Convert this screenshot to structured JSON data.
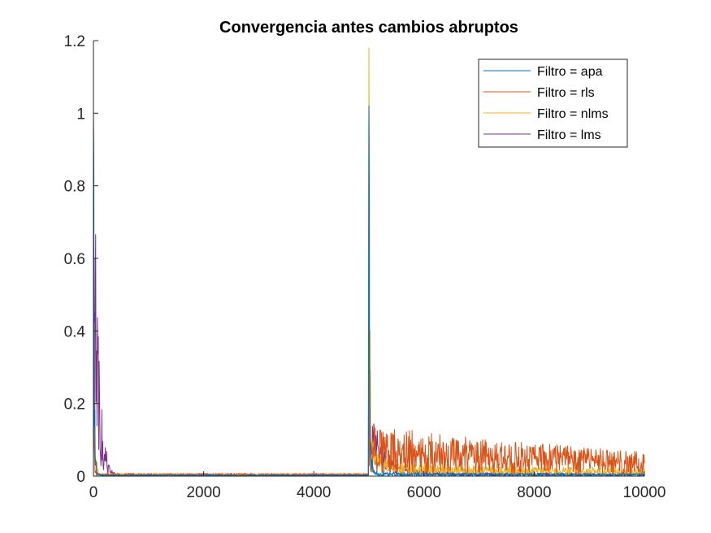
{
  "chart_data": {
    "type": "line",
    "title": "Convergencia antes cambios abruptos",
    "xlabel": "",
    "ylabel": "",
    "xlim": [
      0,
      10000
    ],
    "ylim": [
      0,
      1.2
    ],
    "x_ticks": [
      0,
      2000,
      4000,
      6000,
      8000,
      10000
    ],
    "x_tick_labels": [
      "0",
      "2000",
      "4000",
      "6000",
      "8000",
      "10000"
    ],
    "y_ticks": [
      0,
      0.2,
      0.4,
      0.6,
      0.8,
      1.0,
      1.2
    ],
    "y_tick_labels": [
      "0",
      "0.2",
      "0.4",
      "0.6",
      "0.8",
      "1",
      "1.2"
    ],
    "grid": false,
    "legend_position": "top-right",
    "series": [
      {
        "name": "Filtro = apa",
        "color": "#0072BD",
        "points": [
          [
            0,
            1.0
          ],
          [
            10,
            0.5
          ],
          [
            20,
            0.15
          ],
          [
            40,
            0.03
          ],
          [
            80,
            0.005
          ],
          [
            200,
            0.002
          ],
          [
            4990,
            0.002
          ],
          [
            5000,
            1.02
          ],
          [
            5010,
            0.3
          ],
          [
            5030,
            0.05
          ],
          [
            5080,
            0.01
          ],
          [
            5200,
            0.005
          ],
          [
            10000,
            0.004
          ]
        ]
      },
      {
        "name": "Filtro = rls",
        "color": "#D95319",
        "points": [
          [
            0,
            1.02
          ],
          [
            10,
            0.1
          ],
          [
            30,
            0.01
          ],
          [
            100,
            0.004
          ],
          [
            4990,
            0.004
          ],
          [
            5000,
            0.48
          ],
          [
            5010,
            0.1
          ],
          [
            5100,
            0.08
          ],
          [
            5500,
            0.07
          ],
          [
            6000,
            0.065
          ],
          [
            7000,
            0.055
          ],
          [
            8000,
            0.048
          ],
          [
            9000,
            0.042
          ],
          [
            10000,
            0.035
          ]
        ]
      },
      {
        "name": "Filtro = nlms",
        "color": "#EDB120",
        "points": [
          [
            0,
            1.03
          ],
          [
            10,
            0.4
          ],
          [
            20,
            0.15
          ],
          [
            50,
            0.03
          ],
          [
            100,
            0.008
          ],
          [
            200,
            0.004
          ],
          [
            4990,
            0.004
          ],
          [
            5000,
            1.18
          ],
          [
            5010,
            0.5
          ],
          [
            5030,
            0.15
          ],
          [
            5100,
            0.04
          ],
          [
            5400,
            0.02
          ],
          [
            7000,
            0.015
          ],
          [
            10000,
            0.012
          ]
        ]
      },
      {
        "name": "Filtro = lms",
        "color": "#7E2F8E",
        "points": [
          [
            0,
            0.98
          ],
          [
            15,
            0.6
          ],
          [
            30,
            0.45
          ],
          [
            60,
            0.3
          ],
          [
            100,
            0.2
          ],
          [
            150,
            0.12
          ],
          [
            200,
            0.06
          ],
          [
            250,
            0.03
          ],
          [
            300,
            0.015
          ],
          [
            400,
            0.006
          ],
          [
            500,
            0.004
          ],
          [
            4990,
            0.004
          ],
          [
            5000,
            1.02
          ],
          [
            5010,
            0.25
          ],
          [
            5030,
            0.1
          ],
          [
            5100,
            0.08
          ],
          [
            5200,
            0.06
          ],
          [
            5300,
            0.04
          ],
          [
            5500,
            0.02
          ],
          [
            5800,
            0.01
          ],
          [
            6500,
            0.006
          ],
          [
            10000,
            0.005
          ]
        ]
      }
    ]
  }
}
